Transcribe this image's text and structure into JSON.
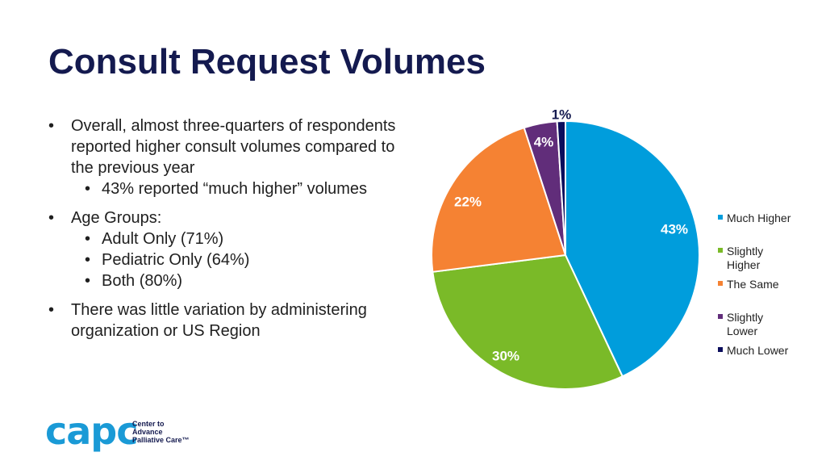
{
  "title": "Consult Request Volumes",
  "bullets": [
    {
      "text": "Overall, almost three-quarters of respondents reported higher consult volumes compared to the previous year",
      "sub": [
        "43% reported “much higher” volumes"
      ]
    },
    {
      "text": "Age Groups:",
      "sub": [
        "Adult Only (71%)",
        "Pediatric Only (64%)",
        "Both (80%)"
      ]
    },
    {
      "text": "There was little variation by administering organization or US Region",
      "sub": []
    }
  ],
  "bullet_glyph": "•",
  "chart_data": {
    "type": "pie",
    "title": "",
    "start_angle_deg": 0,
    "direction": "clockwise",
    "slices": [
      {
        "label": "Much Higher",
        "value": 43,
        "display": "43%",
        "color": "#009ddc",
        "label_color": "#ffffff"
      },
      {
        "label": "Slightly Higher",
        "value": 30,
        "display": "30%",
        "color": "#7aba28",
        "label_color": "#ffffff"
      },
      {
        "label": "The Same",
        "value": 22,
        "display": "22%",
        "color": "#f58233",
        "label_color": "#ffffff"
      },
      {
        "label": "Slightly Lower",
        "value": 4,
        "display": "4%",
        "color": "#612d7a",
        "label_color": "#ffffff"
      },
      {
        "label": "Much Lower",
        "value": 1,
        "display": "1%",
        "color": "#0b0d5c",
        "label_color": "#141a4f"
      }
    ],
    "legend_position": "right"
  },
  "logo": {
    "word": "capc",
    "lines": [
      "Center to",
      "Advance",
      "Palliative Care™"
    ],
    "color": "#1a9ad6"
  }
}
